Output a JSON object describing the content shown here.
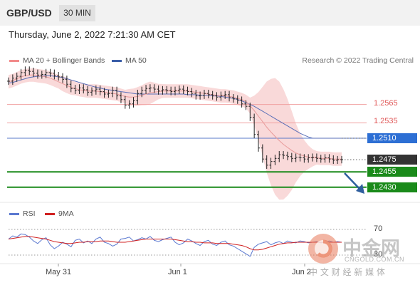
{
  "header": {
    "pair": "GBP/USD",
    "timeframe": "30 MIN"
  },
  "timestamp": "Thursday, June 2, 2022 7:21:30 AM CET",
  "legend": {
    "ma20": "MA 20 + Bollinger Bands",
    "ma50": "MA 50"
  },
  "credit": "Research © 2022 Trading Central",
  "rsi_legend": {
    "rsi": "RSI",
    "ma": "9MA"
  },
  "colors": {
    "ma20": "#f28b8b",
    "ma50": "#3b5ea8",
    "support": "#1a8a1a",
    "resistance": "#e05a5a",
    "last": "#333333",
    "bands": "#f8d2d2"
  },
  "watermark": {
    "main": "中金网",
    "sub": "CNGOLD.COM.CN",
    "tagline": "中 文 财 经 新 媒 体"
  },
  "chart_data": {
    "type": "line",
    "title": "",
    "xlabel": "",
    "ylabel": "",
    "x_tick_labels": [
      "May 31",
      "Jun 1",
      "Jun 2"
    ],
    "ylim": [
      1.241,
      1.2625
    ],
    "levels": [
      {
        "value": 1.2565,
        "label": "1.2565",
        "kind": "resistance",
        "style": "plain"
      },
      {
        "value": 1.2535,
        "label": "1.2535",
        "kind": "resistance",
        "style": "plain"
      },
      {
        "value": 1.251,
        "label": "1.2510",
        "kind": "ma50",
        "style": "box"
      },
      {
        "value": 1.2475,
        "label": "1.2475",
        "kind": "last",
        "style": "box"
      },
      {
        "value": 1.2455,
        "label": "1.2455",
        "kind": "support",
        "style": "box"
      },
      {
        "value": 1.243,
        "label": "1.2430",
        "kind": "support",
        "style": "box"
      }
    ],
    "series": [
      {
        "name": "GBP/USD",
        "values": [
          1.2603,
          1.2608,
          1.2611,
          1.2617,
          1.2621,
          1.2619,
          1.2616,
          1.2613,
          1.2614,
          1.2617,
          1.2616,
          1.2612,
          1.261,
          1.2606,
          1.2598,
          1.2591,
          1.2588,
          1.2592,
          1.2589,
          1.2585,
          1.2587,
          1.259,
          1.2586,
          1.2582,
          1.2583,
          1.2588,
          1.2579,
          1.2573,
          1.2564,
          1.2566,
          1.2571,
          1.2583,
          1.2588,
          1.2591,
          1.2592,
          1.259,
          1.2587,
          1.2589,
          1.2588,
          1.2586,
          1.2588,
          1.259,
          1.2588,
          1.2586,
          1.2583,
          1.2579,
          1.258,
          1.2583,
          1.2581,
          1.2579,
          1.2577,
          1.258,
          1.2581,
          1.2576,
          1.2574,
          1.2572,
          1.2566,
          1.2562,
          1.2544,
          1.2516,
          1.2494,
          1.2476,
          1.2466,
          1.2472,
          1.2477,
          1.2483,
          1.2482,
          1.248,
          1.2477,
          1.2479,
          1.2478,
          1.2476,
          1.2478,
          1.2479,
          1.2477,
          1.2476,
          1.2478,
          1.2476,
          1.2474,
          1.2475,
          1.2475
        ]
      },
      {
        "name": "MA 20",
        "values": [
          1.2602,
          1.2604,
          1.2607,
          1.261,
          1.2612,
          1.2613,
          1.2613,
          1.2612,
          1.2611,
          1.261,
          1.2608,
          1.2605,
          1.2602,
          1.2599,
          1.2596,
          1.2593,
          1.2591,
          1.2589,
          1.2588,
          1.2587,
          1.2587,
          1.2587,
          1.2586,
          1.2585,
          1.2584,
          1.2583,
          1.2582,
          1.258,
          1.2578,
          1.2577,
          1.2577,
          1.2578,
          1.258,
          1.2582,
          1.2584,
          1.2585,
          1.2586,
          1.2587,
          1.2587,
          1.2587,
          1.2587,
          1.2587,
          1.2587,
          1.2587,
          1.2586,
          1.2585,
          1.2584,
          1.2583,
          1.2582,
          1.2581,
          1.258,
          1.2579,
          1.2579,
          1.2578,
          1.2577,
          1.2575,
          1.2573,
          1.257,
          1.2563,
          1.2555,
          1.2546,
          1.2537,
          1.2528,
          1.252,
          1.2513,
          1.2506,
          1.25,
          1.2495,
          1.249,
          1.2486,
          1.2483,
          1.2481,
          1.2479,
          1.2478,
          1.2478,
          1.2477,
          1.2477,
          1.2477,
          1.2476,
          1.2476,
          1.2476
        ]
      },
      {
        "name": "MA 50",
        "values": [
          1.26,
          1.2601,
          1.2603,
          1.2605,
          1.2607,
          1.2609,
          1.261,
          1.2611,
          1.2611,
          1.2612,
          1.2612,
          1.2611,
          1.261,
          1.2609,
          1.2607,
          1.2605,
          1.2603,
          1.2601,
          1.2599,
          1.2597,
          1.2595,
          1.2593,
          1.2592,
          1.259,
          1.2589,
          1.2588,
          1.2587,
          1.2586,
          1.2585,
          1.2584,
          1.2583,
          1.2582,
          1.2582,
          1.2582,
          1.2582,
          1.2582,
          1.2582,
          1.2582,
          1.2582,
          1.2582,
          1.2582,
          1.2582,
          1.2582,
          1.2581,
          1.2581,
          1.2581,
          1.258,
          1.258,
          1.258,
          1.2579,
          1.2579,
          1.2578,
          1.2577,
          1.2576,
          1.2575,
          1.2573,
          1.2571,
          1.2568,
          1.2565,
          1.2562,
          1.2558,
          1.2554,
          1.255,
          1.2546,
          1.2542,
          1.2538,
          1.2534,
          1.253,
          1.2526,
          1.2522,
          1.2518,
          1.2515,
          1.2512,
          1.251,
          1.251,
          1.251,
          1.251,
          1.251,
          1.251,
          1.251,
          1.251
        ]
      },
      {
        "name": "RSI",
        "values": [
          55,
          60,
          58,
          63,
          62,
          58,
          52,
          48,
          54,
          57,
          46,
          40,
          44,
          50,
          47,
          43,
          53,
          55,
          49,
          52,
          48,
          55,
          58,
          50,
          48,
          44,
          47,
          55,
          56,
          58,
          52,
          54,
          57,
          55,
          59,
          53,
          51,
          54,
          56,
          58,
          50,
          46,
          49,
          55,
          52,
          48,
          45,
          51,
          53,
          47,
          45,
          50,
          52,
          46,
          44,
          40,
          36,
          32,
          28,
          42,
          47,
          49,
          51,
          46,
          49,
          51,
          48,
          52,
          50,
          49,
          52,
          51,
          49,
          50,
          51,
          49,
          50,
          52,
          50,
          51,
          50
        ]
      },
      {
        "name": "9MA",
        "values": [
          55,
          56,
          57,
          58,
          59,
          59,
          58,
          57,
          56,
          55,
          53,
          51,
          50,
          49,
          48,
          48,
          49,
          50,
          50,
          51,
          51,
          51,
          52,
          52,
          52,
          51,
          50,
          50,
          50,
          51,
          52,
          53,
          54,
          55,
          55,
          55,
          55,
          55,
          55,
          55,
          54,
          53,
          52,
          51,
          51,
          50,
          50,
          49,
          49,
          49,
          48,
          48,
          48,
          48,
          47,
          46,
          45,
          43,
          40,
          38,
          38,
          39,
          41,
          43,
          45,
          47,
          48,
          49,
          49,
          50,
          50,
          50,
          50,
          50,
          50,
          50,
          50,
          50,
          50,
          50,
          50
        ]
      }
    ],
    "rsi_levels": [
      {
        "value": 70,
        "label": "70"
      },
      {
        "value": 30,
        "label": "30"
      }
    ],
    "annotations": [
      "arrow-down"
    ]
  }
}
